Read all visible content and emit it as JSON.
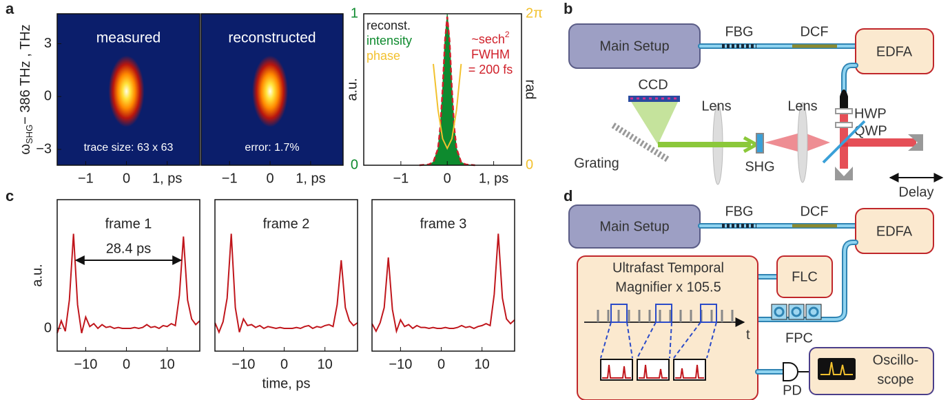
{
  "panel_labels": [
    "a",
    "b",
    "c",
    "d"
  ],
  "chart_data": [
    {
      "type": "heatmap",
      "title": "measured",
      "annotation": "trace size: 63 x 63",
      "background": "#0b1e6b",
      "ylabel": {
        "symbol": "ω",
        "subscript": "SHG",
        "rest": "− 386 THz , THz"
      },
      "spot": {
        "x": 0,
        "y": 0.3
      },
      "xlim": [
        -1.7,
        1.8
      ],
      "xticks": [
        {
          "value": -1,
          "label": "−1"
        },
        0,
        {
          "value": 1,
          "label": "1, ps"
        }
      ],
      "ylim": [
        -3.9,
        4.7
      ],
      "yticks": [
        3,
        0,
        {
          "value": -3,
          "label": "−3"
        }
      ]
    },
    {
      "type": "heatmap",
      "title": "reconstructed",
      "annotation": "error: 1.7%",
      "background": "#0b1e6b",
      "spot": {
        "x": 0,
        "y": 0.3
      },
      "xlim": [
        -1.7,
        1.8
      ],
      "xticks": [
        {
          "value": -1,
          "label": "−1"
        },
        0,
        {
          "value": 1,
          "label": "1, ps"
        }
      ],
      "ylim": [
        -3.9,
        4.7
      ]
    },
    {
      "type": "line",
      "legend_title": "reconst.",
      "legend_loc": "upper left",
      "ylabel": "a.u.",
      "y2label": "rad",
      "fit_label": {
        "text": "~sech",
        "superscript": "2",
        "line2": "FWHM",
        "line3": "= 200 fs",
        "color": "#d0202a"
      },
      "xlim": [
        -1.8,
        1.6
      ],
      "xticks": [
        {
          "value": -1,
          "label": "−1"
        },
        0,
        {
          "value": 1,
          "label": "1,  ps"
        }
      ],
      "ylim": [
        0,
        1
      ],
      "yticks": [
        0,
        1
      ],
      "ytick_color": "#0e8a2e",
      "y2lim": [
        0,
        6.283
      ],
      "y2ticks": [
        0,
        {
          "value": 6.283,
          "label": "2π"
        }
      ],
      "y2tick_color": "#f2c12e",
      "series": [
        {
          "name": "intensity",
          "color": "#0e8a2e",
          "fill": true,
          "x": [
            -0.6,
            -0.4,
            -0.3,
            -0.2,
            -0.15,
            -0.1,
            -0.05,
            0,
            0.05,
            0.1,
            0.15,
            0.2,
            0.3,
            0.4,
            0.6
          ],
          "values": [
            0,
            0.004,
            0.02,
            0.11,
            0.25,
            0.5,
            0.83,
            1,
            0.83,
            0.5,
            0.25,
            0.11,
            0.02,
            0.004,
            0
          ]
        },
        {
          "color": "#d0202a",
          "dashed": true,
          "x": [
            -0.6,
            -0.4,
            -0.3,
            -0.2,
            -0.15,
            -0.1,
            -0.05,
            0,
            0.05,
            0.1,
            0.15,
            0.2,
            0.3,
            0.4,
            0.6
          ],
          "values": [
            0,
            0.005,
            0.02,
            0.11,
            0.25,
            0.5,
            0.82,
            0.98,
            0.82,
            0.5,
            0.25,
            0.11,
            0.02,
            0.005,
            0
          ]
        },
        {
          "name": "phase",
          "color": "#f2c12e",
          "axis": "y2",
          "x": [
            -0.3,
            -0.2,
            -0.1,
            0,
            0.1,
            0.2,
            0.3
          ],
          "values": [
            4.2,
            2.3,
            1.1,
            0.7,
            1.1,
            2.3,
            4.2
          ]
        }
      ]
    },
    {
      "type": "line",
      "title": "frame 1",
      "ylabel": "a.u.",
      "annotation": {
        "text": "28.4 ps",
        "x": [
          -12.4,
          13.4
        ],
        "y": 0.72
      },
      "xlim": [
        -17,
        18
      ],
      "xticks": [
        {
          "value": -10,
          "label": "−10"
        },
        0,
        10
      ],
      "ylim": [
        -0.24,
        1.36
      ],
      "yticks": [
        0
      ],
      "x": [
        -17,
        -16,
        -15,
        -14,
        -13,
        -12,
        -11,
        -10,
        -9,
        -8,
        -7,
        -6,
        -5,
        -4,
        -3,
        -2,
        -1,
        0,
        1,
        2,
        3,
        4,
        5,
        6,
        7,
        8,
        9,
        10,
        11,
        12,
        13,
        14,
        15,
        16,
        17,
        18
      ],
      "series": [
        {
          "color": "#c0161c",
          "values": [
            -0.05,
            0.08,
            -0.03,
            0.3,
            1.0,
            0.25,
            -0.05,
            0.12,
            0.02,
            0.05,
            0.0,
            0.04,
            0.01,
            0.02,
            0,
            0.01,
            0,
            0,
            0,
            0.01,
            0,
            0.01,
            0.04,
            0.01,
            0.02,
            0,
            0.03,
            0.02,
            0.05,
            0.03,
            0.35,
            0.97,
            0.3,
            0.1,
            0.04,
            0.08
          ]
        }
      ]
    },
    {
      "type": "line",
      "title": "frame 2",
      "xlabel": "time, ps",
      "xlim": [
        -17,
        18
      ],
      "xticks": [
        {
          "value": -10,
          "label": "−10"
        },
        0,
        10
      ],
      "ylim": [
        -0.24,
        1.36
      ],
      "x": [
        -17,
        -16,
        -15,
        -14,
        -13,
        -12,
        -11,
        -10,
        -9,
        -8,
        -7,
        -6,
        -5,
        -4,
        -3,
        -2,
        -1,
        0,
        1,
        2,
        3,
        4,
        5,
        6,
        7,
        8,
        9,
        10,
        11,
        12,
        13,
        14,
        15,
        16,
        17,
        18
      ],
      "series": [
        {
          "color": "#c0161c",
          "values": [
            0.06,
            -0.04,
            0.07,
            0.32,
            1.0,
            0.22,
            -0.04,
            0.1,
            0.03,
            0.04,
            0.01,
            0.03,
            0,
            0.02,
            0.01,
            0,
            0.01,
            0,
            0,
            0,
            0.01,
            0,
            0.02,
            0.03,
            0,
            0.02,
            0.01,
            0.03,
            0.04,
            0.02,
            0.25,
            0.72,
            0.22,
            0.08,
            0.03,
            0.06
          ]
        }
      ]
    },
    {
      "type": "line",
      "title": "frame 3",
      "xlim": [
        -17,
        18
      ],
      "xticks": [
        {
          "value": -10,
          "label": "−10"
        },
        0,
        10
      ],
      "ylim": [
        -0.24,
        1.36
      ],
      "x": [
        -17,
        -16,
        -15,
        -14,
        -13,
        -12,
        -11,
        -10,
        -9,
        -8,
        -7,
        -6,
        -5,
        -4,
        -3,
        -2,
        -1,
        0,
        1,
        2,
        3,
        4,
        5,
        6,
        7,
        8,
        9,
        10,
        11,
        12,
        13,
        14,
        15,
        16,
        17,
        18
      ],
      "series": [
        {
          "color": "#c0161c",
          "values": [
            0.05,
            -0.03,
            0.06,
            0.22,
            0.75,
            0.2,
            -0.03,
            0.09,
            0.02,
            0.04,
            0,
            0.03,
            0.01,
            0.01,
            0,
            0.01,
            0,
            0,
            0.01,
            0,
            0,
            0.01,
            0.03,
            0.01,
            0.02,
            0,
            0.02,
            0.03,
            0.05,
            0.03,
            0.36,
            1.0,
            0.32,
            0.1,
            0.05,
            0.09
          ]
        }
      ]
    }
  ],
  "diagram_b": {
    "main_setup": "Main Setup",
    "fbg": "FBG",
    "dcf": "DCF",
    "edfa": "EDFA",
    "ccd": "CCD",
    "lens": [
      "Lens",
      "Lens"
    ],
    "hwp": "HWP",
    "qwp": "QWP",
    "grating": "Grating",
    "shg": "SHG",
    "delay": "Delay"
  },
  "diagram_d": {
    "main_setup": "Main Setup",
    "fbg": "FBG",
    "dcf": "DCF",
    "edfa": "EDFA",
    "magnifier": [
      "Ultrafast Temporal",
      "Magnifier x 105.5"
    ],
    "flc": "FLC",
    "time_axis": "t",
    "fpc": "FPC",
    "pd": "PD",
    "oscilloscope": [
      "Oscillo-",
      "scope"
    ]
  }
}
